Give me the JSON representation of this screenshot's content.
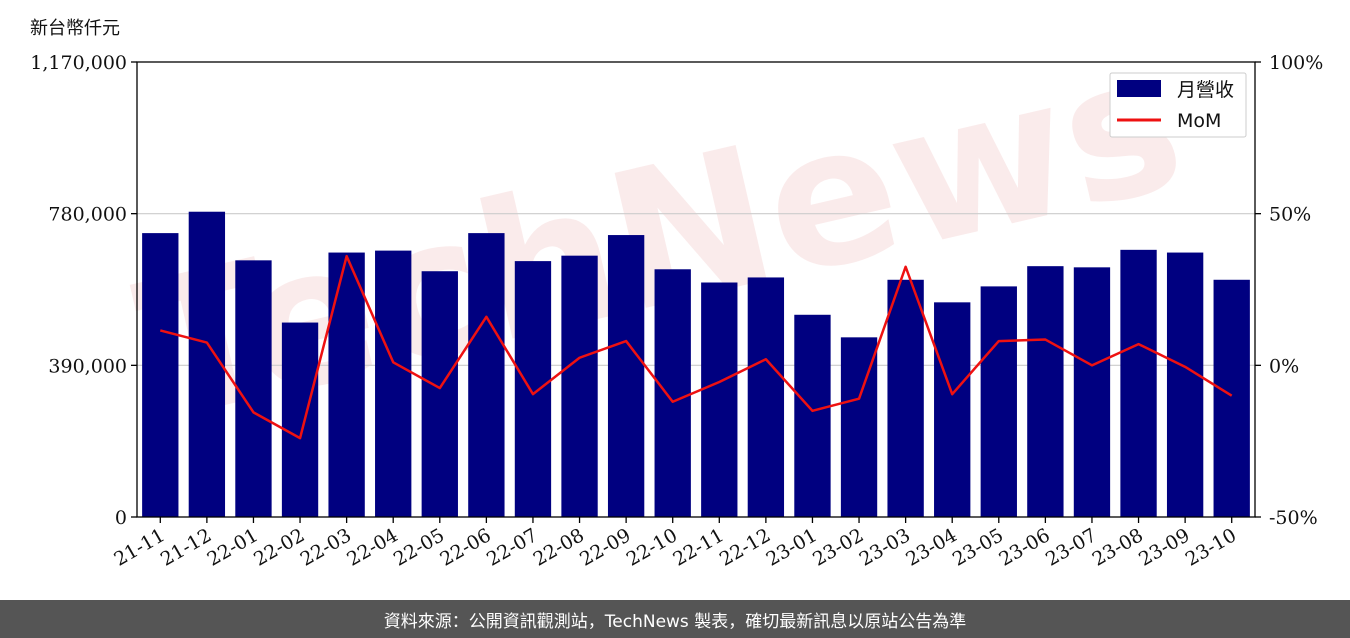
{
  "header": {
    "unit_label": "新台幣仟元"
  },
  "footer": {
    "text": "資料來源：公開資訊觀測站，TechNews 製表，確切最新訊息以原站公告為準"
  },
  "watermark": {
    "text": "TechNews"
  },
  "colors": {
    "bar": "#000080",
    "line": "#ee1111",
    "grid": "#cccccc",
    "footer_bg": "#555555"
  },
  "chart_data": {
    "type": "bar+line",
    "categories": [
      "21-11",
      "21-12",
      "22-01",
      "22-02",
      "22-03",
      "22-04",
      "22-05",
      "22-06",
      "22-07",
      "22-08",
      "22-09",
      "22-10",
      "22-11",
      "22-12",
      "23-01",
      "23-02",
      "23-03",
      "23-04",
      "23-05",
      "23-06",
      "23-07",
      "23-08",
      "23-09",
      "23-10"
    ],
    "series": [
      {
        "name": "月營收",
        "type": "bar",
        "axis": "left",
        "values": [
          730000,
          785000,
          660000,
          500000,
          680000,
          685000,
          632000,
          730000,
          658000,
          672000,
          725000,
          637000,
          603000,
          616000,
          520000,
          462000,
          610000,
          552000,
          593000,
          645000,
          642000,
          687000,
          680000,
          610000
        ]
      },
      {
        "name": "MoM",
        "type": "line",
        "axis": "right",
        "values": [
          11.5,
          7.5,
          -15.5,
          -24,
          36,
          1,
          -7.5,
          16,
          -9.5,
          2.5,
          8,
          -12,
          -5.5,
          2,
          -15,
          -11,
          32.5,
          -9.5,
          8,
          8.5,
          0,
          7,
          -0.5,
          -10
        ]
      }
    ],
    "y_left": {
      "ticks": [
        0,
        390000,
        780000,
        1170000
      ],
      "tick_labels": [
        "0",
        "390,000",
        "780,000",
        "1,170,000"
      ],
      "ylim": [
        0,
        1170000
      ]
    },
    "y_right": {
      "ticks": [
        -50,
        0,
        50,
        100
      ],
      "tick_labels": [
        "-50%",
        "0%",
        "50%",
        "100%"
      ],
      "ylim": [
        -50,
        100
      ]
    },
    "grid": "horizontal",
    "legend_position": "top-right"
  }
}
